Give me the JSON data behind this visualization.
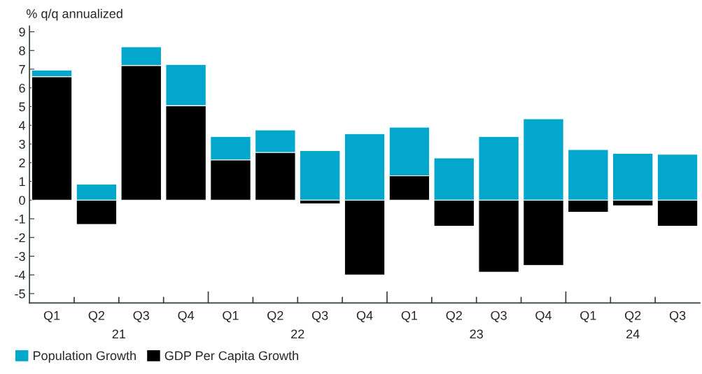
{
  "chart_data": {
    "type": "bar",
    "stacked": true,
    "ylabel": "% q/q annualized",
    "categories": [
      "Q1",
      "Q2",
      "Q3",
      "Q4",
      "Q1",
      "Q2",
      "Q3",
      "Q4",
      "Q1",
      "Q2",
      "Q3",
      "Q4",
      "Q1",
      "Q2",
      "Q3"
    ],
    "annotations": [
      "21",
      "22",
      "23",
      "24"
    ],
    "series": [
      {
        "name": "GDP Per Capita Growth",
        "color": "#000000",
        "values": [
          6.6,
          -1.3,
          7.2,
          5.05,
          2.15,
          2.55,
          -0.2,
          -4.0,
          1.3,
          -1.4,
          -3.85,
          -3.5,
          -0.65,
          -0.3,
          -1.4
        ]
      },
      {
        "name": "Population Growth",
        "color": "#04a7cc",
        "values": [
          0.35,
          0.85,
          1.0,
          2.2,
          1.25,
          1.2,
          2.65,
          3.55,
          2.6,
          2.25,
          3.4,
          4.35,
          2.7,
          2.5,
          2.45
        ]
      }
    ],
    "ylim": [
      -5.5,
      9.3
    ],
    "yticks": [
      -5,
      -4,
      -3,
      -2,
      -1,
      0,
      1,
      2,
      3,
      4,
      5,
      6,
      7,
      8,
      9
    ],
    "grid": false,
    "legend": "bottom left"
  }
}
